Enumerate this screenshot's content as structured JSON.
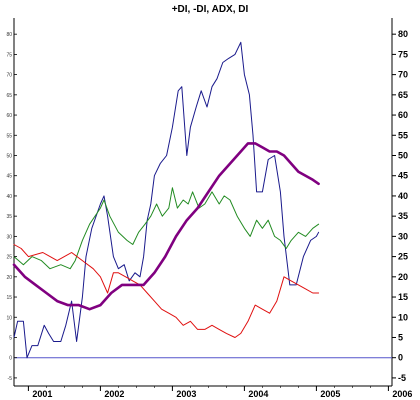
{
  "chart_data": {
    "type": "line",
    "title": "+DI, -DI, ADX, DI",
    "xlabel": "",
    "ylabel": "",
    "x_ticks": [
      "2001",
      "2002",
      "2003",
      "2004",
      "2005",
      "2006"
    ],
    "y_ticks": [
      -5,
      0,
      5,
      10,
      15,
      20,
      25,
      30,
      35,
      40,
      45,
      50,
      55,
      60,
      65,
      70,
      75,
      80
    ],
    "ylim": [
      -7,
      84
    ],
    "xlim": [
      2000.8,
      2006.05
    ],
    "zero_line": true,
    "grid": false,
    "legend": "none",
    "series": [
      {
        "color": "#1a1a8c",
        "width": 1,
        "points": [
          [
            2000.8,
            5
          ],
          [
            2000.85,
            9
          ],
          [
            2000.93,
            9
          ],
          [
            2000.98,
            0
          ],
          [
            2001.05,
            3
          ],
          [
            2001.13,
            3
          ],
          [
            2001.22,
            8
          ],
          [
            2001.28,
            6
          ],
          [
            2001.35,
            4
          ],
          [
            2001.45,
            4
          ],
          [
            2001.52,
            8
          ],
          [
            2001.6,
            14
          ],
          [
            2001.67,
            4
          ],
          [
            2001.75,
            15
          ],
          [
            2001.8,
            25
          ],
          [
            2001.88,
            32
          ],
          [
            2002.0,
            38
          ],
          [
            2002.05,
            40
          ],
          [
            2002.1,
            35
          ],
          [
            2002.18,
            25
          ],
          [
            2002.25,
            22
          ],
          [
            2002.33,
            23
          ],
          [
            2002.4,
            19
          ],
          [
            2002.48,
            21
          ],
          [
            2002.55,
            20
          ],
          [
            2002.6,
            25
          ],
          [
            2002.65,
            34
          ],
          [
            2002.7,
            38
          ],
          [
            2002.75,
            45
          ],
          [
            2002.83,
            48
          ],
          [
            2002.92,
            50
          ],
          [
            2003.0,
            57
          ],
          [
            2003.08,
            66
          ],
          [
            2003.13,
            67
          ],
          [
            2003.2,
            50
          ],
          [
            2003.25,
            57
          ],
          [
            2003.33,
            62
          ],
          [
            2003.4,
            66
          ],
          [
            2003.48,
            62
          ],
          [
            2003.55,
            67
          ],
          [
            2003.62,
            69
          ],
          [
            2003.7,
            73
          ],
          [
            2003.78,
            74
          ],
          [
            2003.87,
            75
          ],
          [
            2003.95,
            78
          ],
          [
            2004.0,
            70
          ],
          [
            2004.07,
            65
          ],
          [
            2004.12,
            55
          ],
          [
            2004.17,
            41
          ],
          [
            2004.25,
            41
          ],
          [
            2004.33,
            49
          ],
          [
            2004.42,
            50
          ],
          [
            2004.5,
            41
          ],
          [
            2004.55,
            30
          ],
          [
            2004.63,
            18
          ],
          [
            2004.72,
            18
          ],
          [
            2004.82,
            25
          ],
          [
            2004.92,
            29
          ],
          [
            2005.0,
            30
          ],
          [
            2005.03,
            31
          ]
        ]
      },
      {
        "color": "#228b22",
        "width": 1,
        "points": [
          [
            2000.8,
            25
          ],
          [
            2000.93,
            23
          ],
          [
            2001.05,
            25
          ],
          [
            2001.18,
            24
          ],
          [
            2001.3,
            22
          ],
          [
            2001.45,
            23
          ],
          [
            2001.58,
            22
          ],
          [
            2001.65,
            24
          ],
          [
            2001.75,
            29
          ],
          [
            2001.85,
            33
          ],
          [
            2002.0,
            37
          ],
          [
            2002.05,
            39
          ],
          [
            2002.13,
            35
          ],
          [
            2002.25,
            31
          ],
          [
            2002.37,
            29
          ],
          [
            2002.45,
            28
          ],
          [
            2002.53,
            31
          ],
          [
            2002.62,
            33
          ],
          [
            2002.7,
            35
          ],
          [
            2002.78,
            38
          ],
          [
            2002.86,
            35
          ],
          [
            2002.95,
            37
          ],
          [
            2003.0,
            42
          ],
          [
            2003.07,
            37
          ],
          [
            2003.15,
            39
          ],
          [
            2003.22,
            38
          ],
          [
            2003.28,
            41
          ],
          [
            2003.37,
            37
          ],
          [
            2003.45,
            38
          ],
          [
            2003.55,
            41
          ],
          [
            2003.65,
            38
          ],
          [
            2003.72,
            40
          ],
          [
            2003.8,
            39
          ],
          [
            2003.9,
            35
          ],
          [
            2004.0,
            32
          ],
          [
            2004.08,
            30
          ],
          [
            2004.17,
            34
          ],
          [
            2004.25,
            32
          ],
          [
            2004.33,
            34
          ],
          [
            2004.42,
            30
          ],
          [
            2004.5,
            29
          ],
          [
            2004.58,
            27
          ],
          [
            2004.65,
            29
          ],
          [
            2004.75,
            31
          ],
          [
            2004.85,
            30
          ],
          [
            2004.95,
            32
          ],
          [
            2005.03,
            33
          ]
        ]
      },
      {
        "color": "#e01010",
        "width": 1,
        "points": [
          [
            2000.8,
            28
          ],
          [
            2000.9,
            27
          ],
          [
            2001.0,
            25
          ],
          [
            2001.2,
            26
          ],
          [
            2001.4,
            24
          ],
          [
            2001.6,
            26
          ],
          [
            2001.75,
            24
          ],
          [
            2001.9,
            22
          ],
          [
            2002.0,
            20
          ],
          [
            2002.1,
            16
          ],
          [
            2002.18,
            21
          ],
          [
            2002.25,
            21
          ],
          [
            2002.35,
            20
          ],
          [
            2002.45,
            19
          ],
          [
            2002.55,
            18
          ],
          [
            2002.65,
            16
          ],
          [
            2002.75,
            14
          ],
          [
            2002.85,
            12
          ],
          [
            2002.95,
            11
          ],
          [
            2003.05,
            10
          ],
          [
            2003.15,
            8
          ],
          [
            2003.25,
            9
          ],
          [
            2003.35,
            7
          ],
          [
            2003.45,
            7
          ],
          [
            2003.55,
            8
          ],
          [
            2003.65,
            7
          ],
          [
            2003.75,
            6
          ],
          [
            2003.87,
            5
          ],
          [
            2003.95,
            6
          ],
          [
            2004.05,
            9
          ],
          [
            2004.15,
            13
          ],
          [
            2004.25,
            12
          ],
          [
            2004.35,
            11
          ],
          [
            2004.45,
            14
          ],
          [
            2004.55,
            20
          ],
          [
            2004.65,
            19
          ],
          [
            2004.75,
            18
          ],
          [
            2004.85,
            17
          ],
          [
            2004.95,
            16
          ],
          [
            2005.03,
            16
          ]
        ]
      },
      {
        "color": "#800080",
        "width": 2.6,
        "points": [
          [
            2000.8,
            23
          ],
          [
            2000.95,
            20
          ],
          [
            2001.1,
            18
          ],
          [
            2001.25,
            16
          ],
          [
            2001.4,
            14
          ],
          [
            2001.55,
            13
          ],
          [
            2001.7,
            13
          ],
          [
            2001.85,
            12
          ],
          [
            2002.0,
            13
          ],
          [
            2002.15,
            16
          ],
          [
            2002.3,
            18
          ],
          [
            2002.45,
            18
          ],
          [
            2002.6,
            18
          ],
          [
            2002.75,
            21
          ],
          [
            2002.9,
            25
          ],
          [
            2003.05,
            30
          ],
          [
            2003.2,
            34
          ],
          [
            2003.35,
            37
          ],
          [
            2003.5,
            41
          ],
          [
            2003.65,
            45
          ],
          [
            2003.8,
            48
          ],
          [
            2003.95,
            51
          ],
          [
            2004.05,
            53
          ],
          [
            2004.15,
            53
          ],
          [
            2004.25,
            52
          ],
          [
            2004.35,
            51
          ],
          [
            2004.45,
            51
          ],
          [
            2004.55,
            50
          ],
          [
            2004.65,
            48
          ],
          [
            2004.75,
            46
          ],
          [
            2004.85,
            45
          ],
          [
            2004.95,
            44
          ],
          [
            2005.03,
            43
          ]
        ]
      }
    ]
  }
}
